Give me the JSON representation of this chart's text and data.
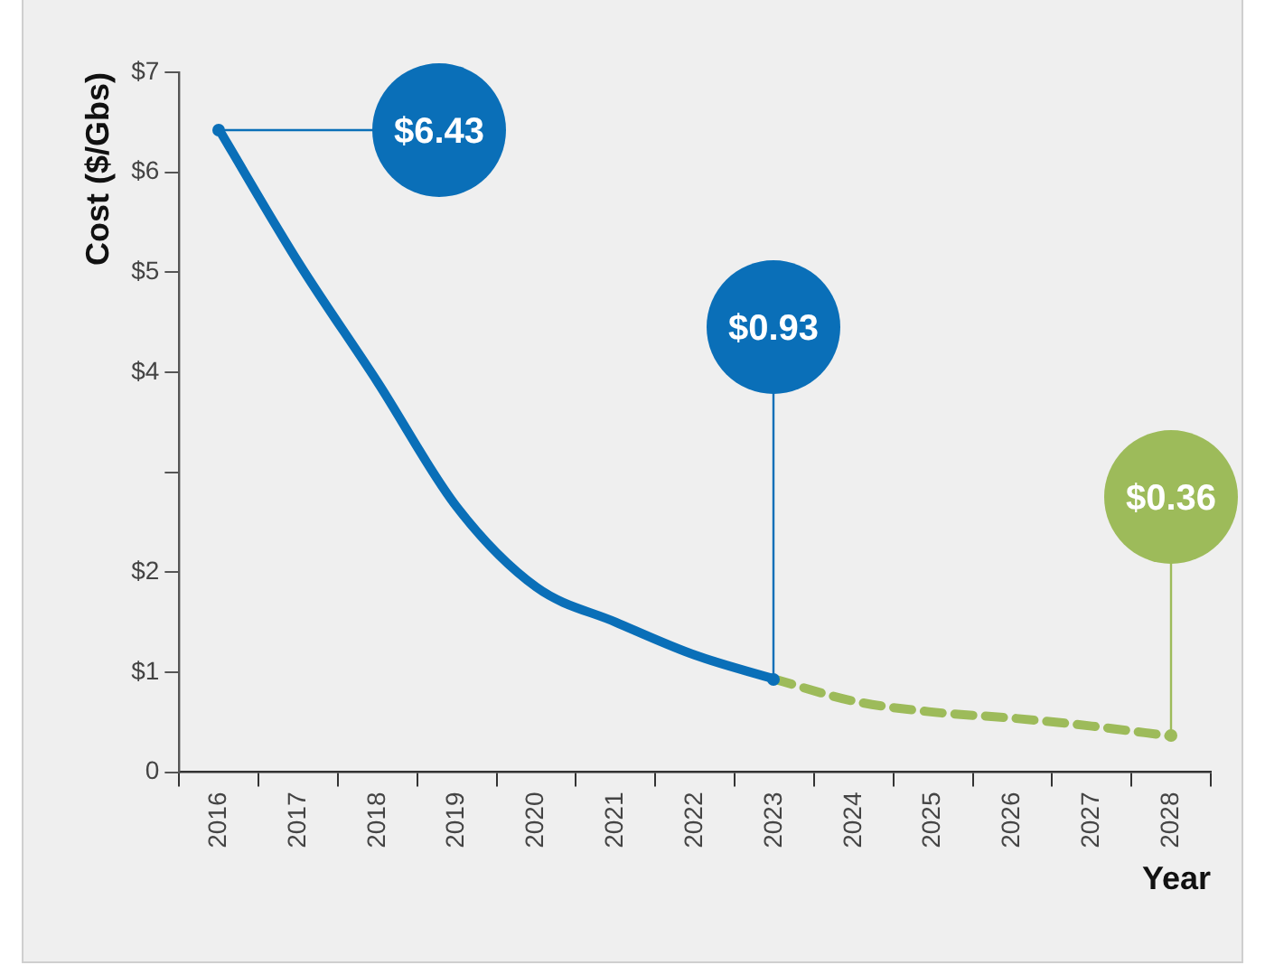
{
  "chart_data": {
    "type": "line",
    "xlabel": "Year",
    "ylabel": "Cost ($/Gbs)",
    "categories": [
      "2016",
      "2017",
      "2018",
      "2019",
      "2020",
      "2021",
      "2022",
      "2023",
      "2024",
      "2025",
      "2026",
      "2027",
      "2028"
    ],
    "series": [
      {
        "color": "#0a6fb8",
        "line_style": "solid",
        "values": [
          6.43,
          5.1,
          3.9,
          2.65,
          1.85,
          1.5,
          1.17,
          0.93,
          null,
          null,
          null,
          null,
          null
        ]
      },
      {
        "color": "#9dbb5a",
        "line_style": "dashed",
        "values": [
          null,
          null,
          null,
          null,
          null,
          null,
          null,
          0.93,
          0.71,
          0.6,
          0.54,
          0.46,
          0.36
        ]
      }
    ],
    "ylim": [
      0,
      7
    ],
    "yticks": [
      {
        "value": 0,
        "label": "0"
      },
      {
        "value": 1,
        "label": "$1"
      },
      {
        "value": 2,
        "label": "$2"
      },
      {
        "value": 3,
        "label": null
      },
      {
        "value": 4,
        "label": "$4"
      },
      {
        "value": 5,
        "label": "$5"
      },
      {
        "value": 6,
        "label": "$6"
      },
      {
        "value": 7,
        "label": "$7"
      }
    ],
    "annotations": [
      {
        "text": "$6.43",
        "x": "2016",
        "y": 6.43
      },
      {
        "text": "$0.93",
        "x": "2023",
        "y": 0.93
      },
      {
        "text": "$0.36",
        "x": "2028",
        "y": 0.36
      }
    ],
    "grid": false,
    "legend": false,
    "marker": "none"
  }
}
